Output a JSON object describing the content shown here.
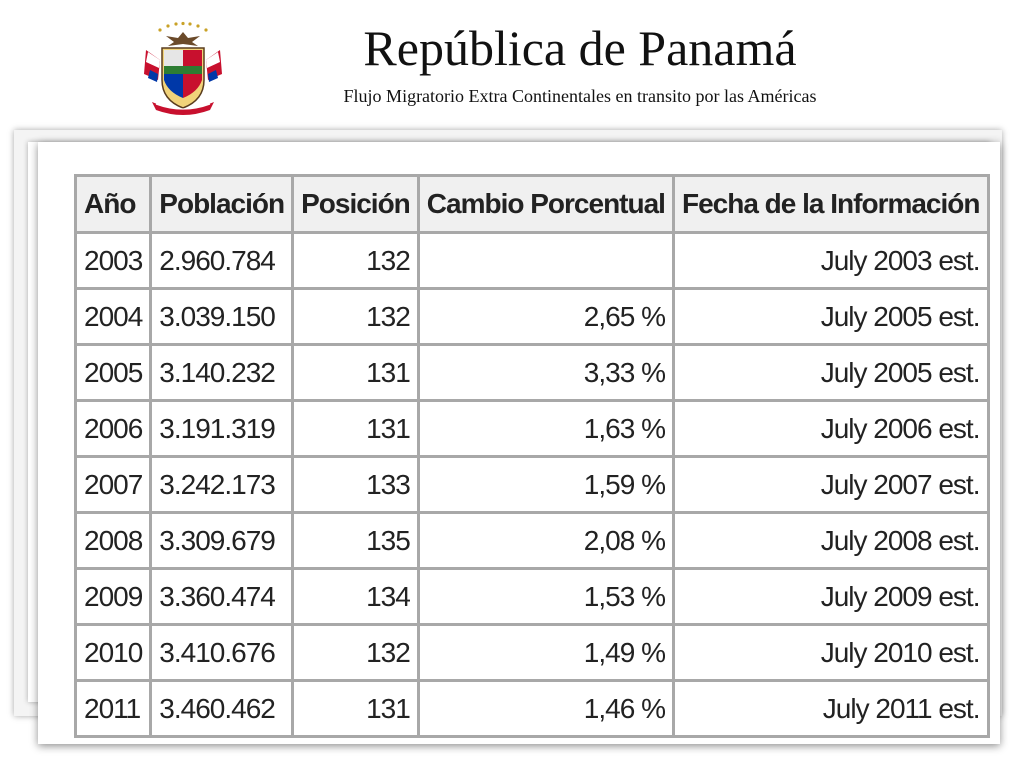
{
  "header": {
    "title": "República de Panamá",
    "subtitle": "Flujo  Migratorio Extra Continentales en transito por las Américas",
    "emblem": "panama-coat-of-arms"
  },
  "table": {
    "columns": [
      "Año",
      "Población",
      "Posición",
      "Cambio Porcentual",
      "Fecha de la Información"
    ],
    "rows": [
      {
        "year": "2003",
        "population": "2.960.784",
        "rank": "132",
        "change": "",
        "date": "July 2003 est."
      },
      {
        "year": "2004",
        "population": "3.039.150",
        "rank": "132",
        "change": "2,65 %",
        "date": "July 2005 est."
      },
      {
        "year": "2005",
        "population": "3.140.232",
        "rank": "131",
        "change": "3,33 %",
        "date": "July 2005 est."
      },
      {
        "year": "2006",
        "population": "3.191.319",
        "rank": "131",
        "change": "1,63 %",
        "date": "July 2006 est."
      },
      {
        "year": "2007",
        "population": "3.242.173",
        "rank": "133",
        "change": "1,59 %",
        "date": "July 2007 est."
      },
      {
        "year": "2008",
        "population": "3.309.679",
        "rank": "135",
        "change": "2,08 %",
        "date": "July 2008 est."
      },
      {
        "year": "2009",
        "population": "3.360.474",
        "rank": "134",
        "change": "1,53 %",
        "date": "July 2009 est."
      },
      {
        "year": "2010",
        "population": "3.410.676",
        "rank": "132",
        "change": "1,49 %",
        "date": "July 2010 est."
      },
      {
        "year": "2011",
        "population": "3.460.462",
        "rank": "131",
        "change": "1,46 %",
        "date": "July 2011 est."
      }
    ]
  }
}
